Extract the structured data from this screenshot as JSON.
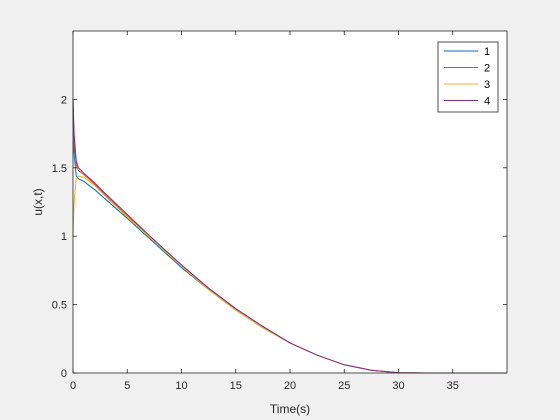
{
  "chart_data": {
    "type": "line",
    "title": "",
    "xlabel": "Time(s)",
    "ylabel": "u(x,t)",
    "xlim": [
      0,
      40
    ],
    "ylim": [
      0,
      2.5
    ],
    "xticks": [
      0,
      5,
      10,
      15,
      20,
      25,
      30,
      35
    ],
    "xtick_labels": [
      "0",
      "5",
      "10",
      "15",
      "20",
      "25",
      "30",
      "35"
    ],
    "yticks": [
      0,
      0.5,
      1,
      1.5,
      2
    ],
    "ytick_labels": [
      "0",
      "0.5",
      "1",
      "1.5",
      "2"
    ],
    "grid": false,
    "legend_position": "top-right",
    "colors": {
      "axes_bg": "#ffffff",
      "figure_bg": "#f0f0f0",
      "axis": "#262626"
    },
    "series": [
      {
        "name": "1",
        "color": "#0072BD",
        "x": [
          0,
          0.1,
          0.3,
          0.5,
          1,
          2,
          3,
          5,
          7.5,
          10,
          12.5,
          15,
          17.5,
          20,
          22.5,
          25,
          27.5,
          30,
          32.5,
          35,
          37.5,
          40
        ],
        "y": [
          2.0,
          1.6,
          1.44,
          1.42,
          1.4,
          1.34,
          1.27,
          1.13,
          0.95,
          0.77,
          0.61,
          0.46,
          0.33,
          0.22,
          0.13,
          0.06,
          0.02,
          0.002,
          0.0,
          0.0,
          0.0,
          0.0
        ]
      },
      {
        "name": "2",
        "color": "#D95319",
        "x": [
          0,
          0.1,
          0.3,
          0.5,
          1,
          2,
          3,
          5,
          7.5,
          10,
          12.5,
          15,
          17.5,
          20,
          22.5,
          25,
          27.5,
          30,
          32.5,
          35,
          37.5,
          40
        ],
        "y": [
          2.0,
          1.7,
          1.52,
          1.48,
          1.45,
          1.38,
          1.3,
          1.15,
          0.97,
          0.78,
          0.62,
          0.47,
          0.34,
          0.22,
          0.13,
          0.06,
          0.02,
          0.002,
          0.0,
          0.0,
          0.0,
          0.0
        ]
      },
      {
        "name": "3",
        "color": "#EDB120",
        "x": [
          0,
          0.1,
          0.3,
          0.5,
          1,
          2,
          3,
          5,
          7.5,
          10,
          12.5,
          15,
          17.5,
          20,
          22.5,
          25,
          27.5,
          30,
          32.5,
          35,
          37.5,
          40
        ],
        "y": [
          1.0,
          1.25,
          1.42,
          1.44,
          1.43,
          1.37,
          1.29,
          1.14,
          0.96,
          0.78,
          0.61,
          0.46,
          0.33,
          0.22,
          0.13,
          0.06,
          0.02,
          0.002,
          0.0,
          0.0,
          0.0,
          0.0
        ]
      },
      {
        "name": "4",
        "color": "#7E2F8E",
        "x": [
          0,
          0.1,
          0.3,
          0.5,
          1,
          2,
          3,
          5,
          7.5,
          10,
          12.5,
          15,
          17.5,
          20,
          22.5,
          25,
          27.5,
          30,
          32.5,
          35,
          37.5,
          40
        ],
        "y": [
          2.0,
          1.75,
          1.55,
          1.5,
          1.46,
          1.39,
          1.31,
          1.16,
          0.97,
          0.79,
          0.62,
          0.47,
          0.34,
          0.22,
          0.13,
          0.06,
          0.02,
          0.002,
          0.0,
          0.0,
          0.0,
          0.0
        ]
      }
    ]
  }
}
